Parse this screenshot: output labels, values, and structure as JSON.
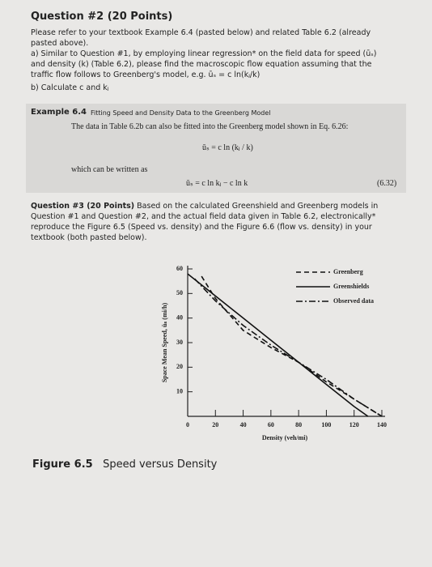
{
  "document": {
    "q2": {
      "title": "Question #2 (20 Points)",
      "intro": "Please refer to your textbook Example 6.4 (pasted below) and related Table 6.2 (already pasted above).",
      "part_a": "a) Similar to Question #1, by employing linear regression* on the field data for speed (ūₛ) and density (k) (Table 6.2), please find the macroscopic flow equation assuming that the traffic flow follows to Greenberg's model, e.g. ūₛ = c ln(kⱼ/k)",
      "part_b": "b) Calculate c and kⱼ"
    },
    "example": {
      "label": "Example 6.4",
      "title": "Fitting Speed and Density Data to the Greenberg Model",
      "text": "The data in Table 6.2b can also be fitted into the Greenberg model shown in Eq. 6.26:",
      "eq1": "ūₛ = c ln (kⱼ / k)",
      "text2": "which can be written as",
      "eq2": "ūₛ = c ln kⱼ − c ln k",
      "eq2_number": "(6.32)"
    },
    "q3": {
      "title": "Question #3 (20 Points)",
      "text": "Based on the calculated Greenshield and Greenberg models in Question #1 and Question #2, and the actual field data given in Table 6.2, electronically* reproduce the Figure 6.5 (Speed vs. density) and the Figure 6.6 (flow vs. density) in your textbook (both pasted below)."
    },
    "figure": {
      "label": "Figure 6.5",
      "caption": "Speed versus Density"
    }
  },
  "chart_data": {
    "type": "line",
    "x_label": "Density (veh/mi)",
    "y_label": "Space Mean Speed, ūₛ (mi/h)",
    "xlim": [
      0,
      140
    ],
    "ylim": [
      0,
      60
    ],
    "xticks": [
      0,
      20,
      40,
      60,
      80,
      100,
      120,
      140
    ],
    "yticks": [
      10,
      20,
      30,
      40,
      50,
      60
    ],
    "series": [
      {
        "name": "Greenberg",
        "color": "#111111",
        "style": "dashed",
        "x": [
          10,
          20,
          40,
          60,
          80,
          100,
          120,
          140
        ],
        "values": [
          57,
          48,
          35,
          28,
          22,
          14,
          7,
          0
        ]
      },
      {
        "name": "Greenshields",
        "color": "#111111",
        "style": "solid",
        "x": [
          0,
          20,
          40,
          60,
          80,
          100,
          120,
          130
        ],
        "values": [
          58,
          49,
          40,
          31,
          22,
          13,
          4,
          0
        ]
      },
      {
        "name": "Observed data",
        "color": "#111111",
        "style": "dash-dot",
        "x": [
          5,
          20,
          40,
          60,
          80,
          100,
          120,
          140
        ],
        "values": [
          56,
          47,
          37,
          29,
          22,
          15,
          7,
          0
        ]
      }
    ]
  }
}
